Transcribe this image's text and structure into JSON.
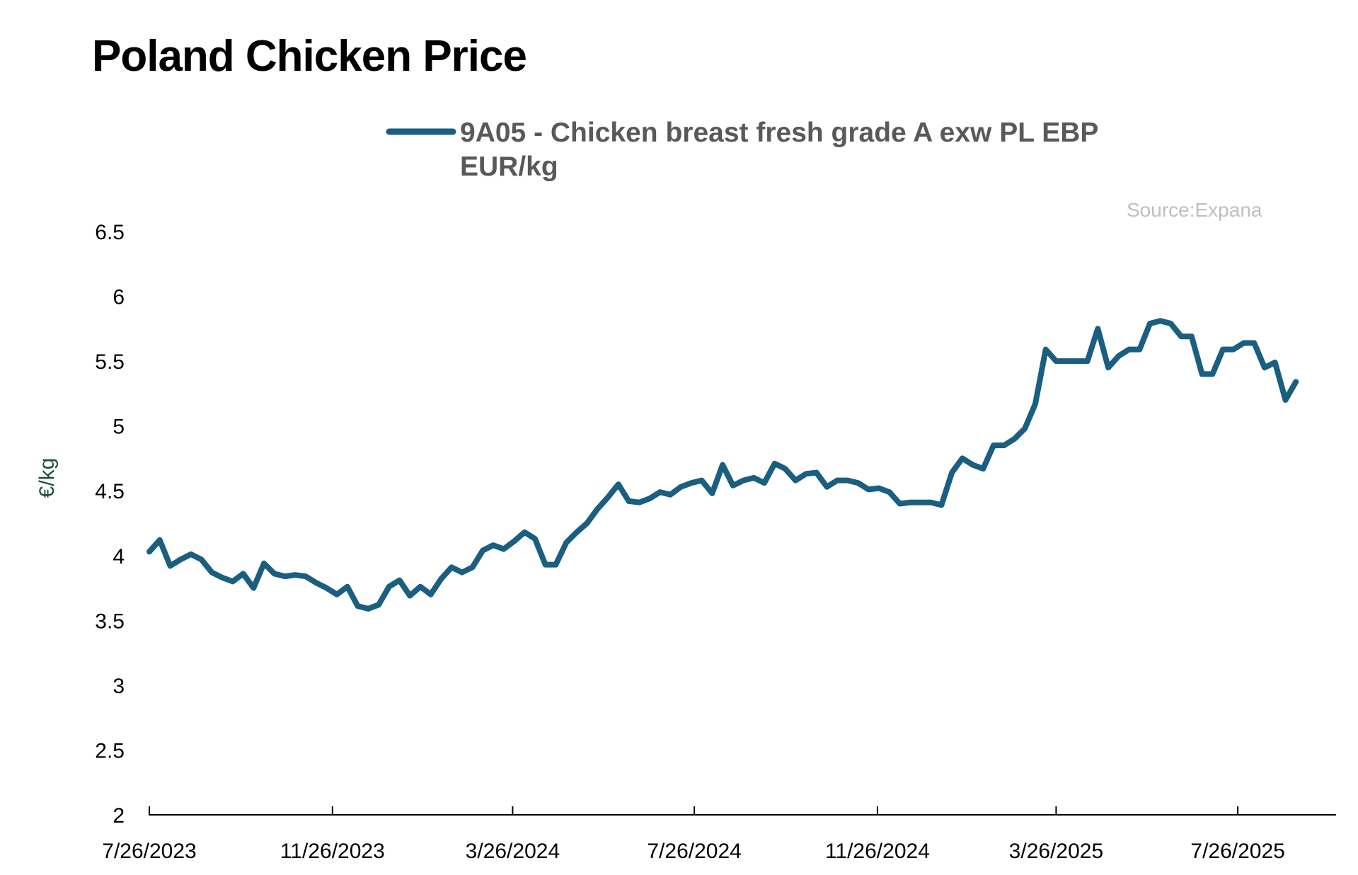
{
  "colors": {
    "series": "#1a5e80",
    "axis": "#000000",
    "title": "#000000",
    "legend_text": "#595959",
    "source": "#bfbfbf",
    "ylabel": "#1e4d44"
  },
  "chart_data": {
    "type": "line",
    "title": "Poland Chicken Price",
    "source": "Source:Expana",
    "ylabel": "€/kg",
    "xlabel": "",
    "ylim": [
      2,
      6.5
    ],
    "y_ticks": [
      "2",
      "2.5",
      "3",
      "3.5",
      "4",
      "4.5",
      "5",
      "5.5",
      "6",
      "6.5"
    ],
    "x_ticks": [
      "7/26/2023",
      "11/26/2023",
      "3/26/2024",
      "7/26/2024",
      "11/26/2024",
      "3/26/2025",
      "7/26/2025"
    ],
    "xlim": [
      "2023-07-26",
      "2025-09-30"
    ],
    "grid": false,
    "legend_position": "top-center",
    "series": [
      {
        "name": "9A05 - Chicken breast fresh grade A exw PL EBP EUR/kg",
        "legend_line1": "9A05 - Chicken breast fresh grade A exw PL EBP",
        "legend_line2": "EUR/kg",
        "points": [
          [
            "2023-07-26",
            4.03
          ],
          [
            "2023-08-02",
            4.12
          ],
          [
            "2023-08-09",
            3.92
          ],
          [
            "2023-08-16",
            3.97
          ],
          [
            "2023-08-23",
            4.01
          ],
          [
            "2023-08-30",
            3.97
          ],
          [
            "2023-09-06",
            3.87
          ],
          [
            "2023-09-13",
            3.83
          ],
          [
            "2023-09-20",
            3.8
          ],
          [
            "2023-09-27",
            3.86
          ],
          [
            "2023-10-04",
            3.75
          ],
          [
            "2023-10-11",
            3.94
          ],
          [
            "2023-10-18",
            3.86
          ],
          [
            "2023-10-25",
            3.84
          ],
          [
            "2023-11-01",
            3.85
          ],
          [
            "2023-11-08",
            3.84
          ],
          [
            "2023-11-15",
            3.79
          ],
          [
            "2023-11-22",
            3.75
          ],
          [
            "2023-11-29",
            3.7
          ],
          [
            "2023-12-06",
            3.76
          ],
          [
            "2023-12-13",
            3.61
          ],
          [
            "2023-12-20",
            3.59
          ],
          [
            "2023-12-27",
            3.62
          ],
          [
            "2024-01-03",
            3.76
          ],
          [
            "2024-01-10",
            3.81
          ],
          [
            "2024-01-17",
            3.69
          ],
          [
            "2024-01-24",
            3.76
          ],
          [
            "2024-01-31",
            3.7
          ],
          [
            "2024-02-07",
            3.82
          ],
          [
            "2024-02-14",
            3.91
          ],
          [
            "2024-02-21",
            3.87
          ],
          [
            "2024-02-28",
            3.91
          ],
          [
            "2024-03-06",
            4.04
          ],
          [
            "2024-03-13",
            4.08
          ],
          [
            "2024-03-20",
            4.05
          ],
          [
            "2024-03-27",
            4.11
          ],
          [
            "2024-04-03",
            4.18
          ],
          [
            "2024-04-10",
            4.13
          ],
          [
            "2024-04-17",
            3.93
          ],
          [
            "2024-04-24",
            3.93
          ],
          [
            "2024-05-01",
            4.1
          ],
          [
            "2024-05-08",
            4.18
          ],
          [
            "2024-05-15",
            4.25
          ],
          [
            "2024-05-22",
            4.36
          ],
          [
            "2024-05-29",
            4.45
          ],
          [
            "2024-06-05",
            4.55
          ],
          [
            "2024-06-12",
            4.42
          ],
          [
            "2024-06-19",
            4.41
          ],
          [
            "2024-06-26",
            4.44
          ],
          [
            "2024-07-03",
            4.49
          ],
          [
            "2024-07-10",
            4.47
          ],
          [
            "2024-07-17",
            4.53
          ],
          [
            "2024-07-24",
            4.56
          ],
          [
            "2024-07-31",
            4.58
          ],
          [
            "2024-08-07",
            4.48
          ],
          [
            "2024-08-14",
            4.7
          ],
          [
            "2024-08-21",
            4.54
          ],
          [
            "2024-08-28",
            4.58
          ],
          [
            "2024-09-04",
            4.6
          ],
          [
            "2024-09-11",
            4.56
          ],
          [
            "2024-09-18",
            4.71
          ],
          [
            "2024-09-25",
            4.67
          ],
          [
            "2024-10-02",
            4.58
          ],
          [
            "2024-10-09",
            4.63
          ],
          [
            "2024-10-16",
            4.64
          ],
          [
            "2024-10-23",
            4.53
          ],
          [
            "2024-10-30",
            4.58
          ],
          [
            "2024-11-06",
            4.58
          ],
          [
            "2024-11-13",
            4.56
          ],
          [
            "2024-11-20",
            4.51
          ],
          [
            "2024-11-27",
            4.52
          ],
          [
            "2024-12-04",
            4.49
          ],
          [
            "2024-12-11",
            4.4
          ],
          [
            "2024-12-18",
            4.41
          ],
          [
            "2024-12-25",
            4.41
          ],
          [
            "2025-01-01",
            4.41
          ],
          [
            "2025-01-08",
            4.39
          ],
          [
            "2025-01-15",
            4.64
          ],
          [
            "2025-01-22",
            4.75
          ],
          [
            "2025-01-29",
            4.7
          ],
          [
            "2025-02-05",
            4.67
          ],
          [
            "2025-02-12",
            4.85
          ],
          [
            "2025-02-19",
            4.85
          ],
          [
            "2025-02-26",
            4.9
          ],
          [
            "2025-03-05",
            4.98
          ],
          [
            "2025-03-12",
            5.17
          ],
          [
            "2025-03-19",
            5.59
          ],
          [
            "2025-03-26",
            5.5
          ],
          [
            "2025-04-02",
            5.5
          ],
          [
            "2025-04-09",
            5.5
          ],
          [
            "2025-04-16",
            5.5
          ],
          [
            "2025-04-23",
            5.75
          ],
          [
            "2025-04-30",
            5.45
          ],
          [
            "2025-05-07",
            5.54
          ],
          [
            "2025-05-14",
            5.59
          ],
          [
            "2025-05-21",
            5.59
          ],
          [
            "2025-05-28",
            5.79
          ],
          [
            "2025-06-04",
            5.81
          ],
          [
            "2025-06-11",
            5.79
          ],
          [
            "2025-06-18",
            5.69
          ],
          [
            "2025-06-25",
            5.69
          ],
          [
            "2025-07-02",
            5.4
          ],
          [
            "2025-07-09",
            5.4
          ],
          [
            "2025-07-16",
            5.59
          ],
          [
            "2025-07-23",
            5.59
          ],
          [
            "2025-07-30",
            5.64
          ],
          [
            "2025-08-06",
            5.64
          ],
          [
            "2025-08-13",
            5.45
          ],
          [
            "2025-08-20",
            5.49
          ],
          [
            "2025-08-27",
            5.2
          ],
          [
            "2025-09-03",
            5.34
          ]
        ]
      }
    ]
  }
}
